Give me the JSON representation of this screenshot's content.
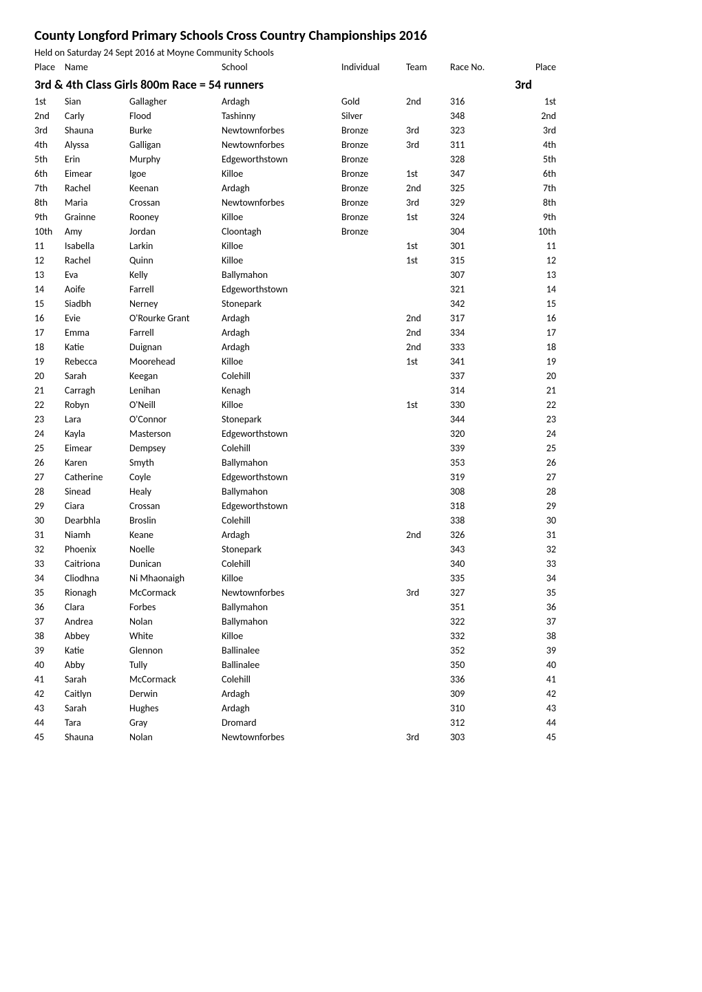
{
  "title": "County Longford Primary Schools Cross Country Championships 2016",
  "subhead": "Held on Saturday 24 Sept 2016 at Moyne Community Schools",
  "header": {
    "placeL": "Place",
    "name": "Name",
    "school": "School",
    "individual": "Individual",
    "team": "Team",
    "race": "Race No.",
    "placeR": "Place"
  },
  "class_heading": "3rd & 4th Class Girls 800m Race = 54 runners",
  "class_suffix": "3rd",
  "rows": [
    {
      "place": "1st",
      "first": "Sian",
      "last": "Gallagher",
      "school": "Ardagh",
      "ind": "Gold",
      "team": "2nd",
      "race": "316",
      "placeR": "1st"
    },
    {
      "place": "2nd",
      "first": "Carly",
      "last": "Flood",
      "school": "Tashinny",
      "ind": "Silver",
      "team": "",
      "race": "348",
      "placeR": "2nd"
    },
    {
      "place": "3rd",
      "first": "Shauna",
      "last": "Burke",
      "school": "Newtownforbes",
      "ind": "Bronze",
      "team": "3rd",
      "race": "323",
      "placeR": "3rd"
    },
    {
      "place": "4th",
      "first": "Alyssa",
      "last": "Galligan",
      "school": "Newtownforbes",
      "ind": "Bronze",
      "team": "3rd",
      "race": "311",
      "placeR": "4th"
    },
    {
      "place": "5th",
      "first": "Erin",
      "last": "Murphy",
      "school": "Edgeworthstown",
      "ind": "Bronze",
      "team": "",
      "race": "328",
      "placeR": "5th"
    },
    {
      "place": "6th",
      "first": "Eimear",
      "last": "Igoe",
      "school": "Killoe",
      "ind": "Bronze",
      "team": "1st",
      "race": "347",
      "placeR": "6th"
    },
    {
      "place": "7th",
      "first": "Rachel",
      "last": "Keenan",
      "school": "Ardagh",
      "ind": "Bronze",
      "team": "2nd",
      "race": "325",
      "placeR": "7th"
    },
    {
      "place": "8th",
      "first": "Maria",
      "last": "Crossan",
      "school": "Newtownforbes",
      "ind": "Bronze",
      "team": "3rd",
      "race": "329",
      "placeR": "8th"
    },
    {
      "place": "9th",
      "first": "Grainne",
      "last": "Rooney",
      "school": "Killoe",
      "ind": "Bronze",
      "team": "1st",
      "race": "324",
      "placeR": "9th"
    },
    {
      "place": "10th",
      "first": "Amy",
      "last": "Jordan",
      "school": "Cloontagh",
      "ind": "Bronze",
      "team": "",
      "race": "304",
      "placeR": "10th"
    },
    {
      "place": "11",
      "first": "Isabella",
      "last": "Larkin",
      "school": "Killoe",
      "ind": "",
      "team": "1st",
      "race": "301",
      "placeR": "11"
    },
    {
      "place": "12",
      "first": "Rachel",
      "last": "Quinn",
      "school": "Killoe",
      "ind": "",
      "team": "1st",
      "race": "315",
      "placeR": "12"
    },
    {
      "place": "13",
      "first": "Eva",
      "last": "Kelly",
      "school": "Ballymahon",
      "ind": "",
      "team": "",
      "race": "307",
      "placeR": "13"
    },
    {
      "place": "14",
      "first": "Aoife",
      "last": "Farrell",
      "school": "Edgeworthstown",
      "ind": "",
      "team": "",
      "race": "321",
      "placeR": "14"
    },
    {
      "place": "15",
      "first": "Siadbh",
      "last": "Nerney",
      "school": "Stonepark",
      "ind": "",
      "team": "",
      "race": "342",
      "placeR": "15"
    },
    {
      "place": "16",
      "first": "Evie",
      "last": "O'Rourke Grant",
      "school": "Ardagh",
      "ind": "",
      "team": "2nd",
      "race": "317",
      "placeR": "16"
    },
    {
      "place": "17",
      "first": "Emma",
      "last": "Farrell",
      "school": "Ardagh",
      "ind": "",
      "team": "2nd",
      "race": "334",
      "placeR": "17"
    },
    {
      "place": "18",
      "first": "Katie",
      "last": "Duignan",
      "school": "Ardagh",
      "ind": "",
      "team": "2nd",
      "race": "333",
      "placeR": "18"
    },
    {
      "place": "19",
      "first": "Rebecca",
      "last": "Moorehead",
      "school": "Killoe",
      "ind": "",
      "team": "1st",
      "race": "341",
      "placeR": "19"
    },
    {
      "place": "20",
      "first": "Sarah",
      "last": "Keegan",
      "school": "Colehill",
      "ind": "",
      "team": "",
      "race": "337",
      "placeR": "20"
    },
    {
      "place": "21",
      "first": "Carragh",
      "last": "Lenihan",
      "school": "Kenagh",
      "ind": "",
      "team": "",
      "race": "314",
      "placeR": "21"
    },
    {
      "place": "22",
      "first": "Robyn",
      "last": "O'Neill",
      "school": "Killoe",
      "ind": "",
      "team": "1st",
      "race": "330",
      "placeR": "22"
    },
    {
      "place": "23",
      "first": "Lara",
      "last": "O'Connor",
      "school": "Stonepark",
      "ind": "",
      "team": "",
      "race": "344",
      "placeR": "23"
    },
    {
      "place": "24",
      "first": "Kayla",
      "last": "Masterson",
      "school": "Edgeworthstown",
      "ind": "",
      "team": "",
      "race": "320",
      "placeR": "24"
    },
    {
      "place": "25",
      "first": "Eimear",
      "last": "Dempsey",
      "school": "Colehill",
      "ind": "",
      "team": "",
      "race": "339",
      "placeR": "25"
    },
    {
      "place": "26",
      "first": "Karen",
      "last": "Smyth",
      "school": "Ballymahon",
      "ind": "",
      "team": "",
      "race": "353",
      "placeR": "26"
    },
    {
      "place": "27",
      "first": "Catherine",
      "last": "Coyle",
      "school": "Edgeworthstown",
      "ind": "",
      "team": "",
      "race": "319",
      "placeR": "27"
    },
    {
      "place": "28",
      "first": "Sinead",
      "last": "Healy",
      "school": "Ballymahon",
      "ind": "",
      "team": "",
      "race": "308",
      "placeR": "28"
    },
    {
      "place": "29",
      "first": "Ciara",
      "last": "Crossan",
      "school": "Edgeworthstown",
      "ind": "",
      "team": "",
      "race": "318",
      "placeR": "29"
    },
    {
      "place": "30",
      "first": "Dearbhla",
      "last": "Broslin",
      "school": "Colehill",
      "ind": "",
      "team": "",
      "race": "338",
      "placeR": "30"
    },
    {
      "place": "31",
      "first": "Niamh",
      "last": "Keane",
      "school": "Ardagh",
      "ind": "",
      "team": "2nd",
      "race": "326",
      "placeR": "31"
    },
    {
      "place": "32",
      "first": "Phoenix",
      "last": "Noelle",
      "school": "Stonepark",
      "ind": "",
      "team": "",
      "race": "343",
      "placeR": "32"
    },
    {
      "place": "33",
      "first": "Caitriona",
      "last": "Dunican",
      "school": "Colehill",
      "ind": "",
      "team": "",
      "race": "340",
      "placeR": "33"
    },
    {
      "place": "34",
      "first": "Cliodhna",
      "last": "Ni Mhaonaigh",
      "school": "Killoe",
      "ind": "",
      "team": "",
      "race": "335",
      "placeR": "34"
    },
    {
      "place": "35",
      "first": "Rionagh",
      "last": "McCormack",
      "school": "Newtownforbes",
      "ind": "",
      "team": "3rd",
      "race": "327",
      "placeR": "35"
    },
    {
      "place": "36",
      "first": "Clara",
      "last": "Forbes",
      "school": "Ballymahon",
      "ind": "",
      "team": "",
      "race": "351",
      "placeR": "36"
    },
    {
      "place": "37",
      "first": "Andrea",
      "last": "Nolan",
      "school": "Ballymahon",
      "ind": "",
      "team": "",
      "race": "322",
      "placeR": "37"
    },
    {
      "place": "38",
      "first": "Abbey",
      "last": "White",
      "school": "Killoe",
      "ind": "",
      "team": "",
      "race": "332",
      "placeR": "38"
    },
    {
      "place": "39",
      "first": "Katie",
      "last": "Glennon",
      "school": "Ballinalee",
      "ind": "",
      "team": "",
      "race": "352",
      "placeR": "39"
    },
    {
      "place": "40",
      "first": "Abby",
      "last": "Tully",
      "school": "Ballinalee",
      "ind": "",
      "team": "",
      "race": "350",
      "placeR": "40"
    },
    {
      "place": "41",
      "first": "Sarah",
      "last": "McCormack",
      "school": "Colehill",
      "ind": "",
      "team": "",
      "race": "336",
      "placeR": "41"
    },
    {
      "place": "42",
      "first": "Caitlyn",
      "last": "Derwin",
      "school": "Ardagh",
      "ind": "",
      "team": "",
      "race": "309",
      "placeR": "42"
    },
    {
      "place": "43",
      "first": "Sarah",
      "last": "Hughes",
      "school": "Ardagh",
      "ind": "",
      "team": "",
      "race": "310",
      "placeR": "43"
    },
    {
      "place": "44",
      "first": "Tara",
      "last": "Gray",
      "school": "Dromard",
      "ind": "",
      "team": "",
      "race": "312",
      "placeR": "44"
    },
    {
      "place": "45",
      "first": "Shauna",
      "last": "Nolan",
      "school": "Newtownforbes",
      "ind": "",
      "team": "3rd",
      "race": "303",
      "placeR": "45"
    }
  ]
}
